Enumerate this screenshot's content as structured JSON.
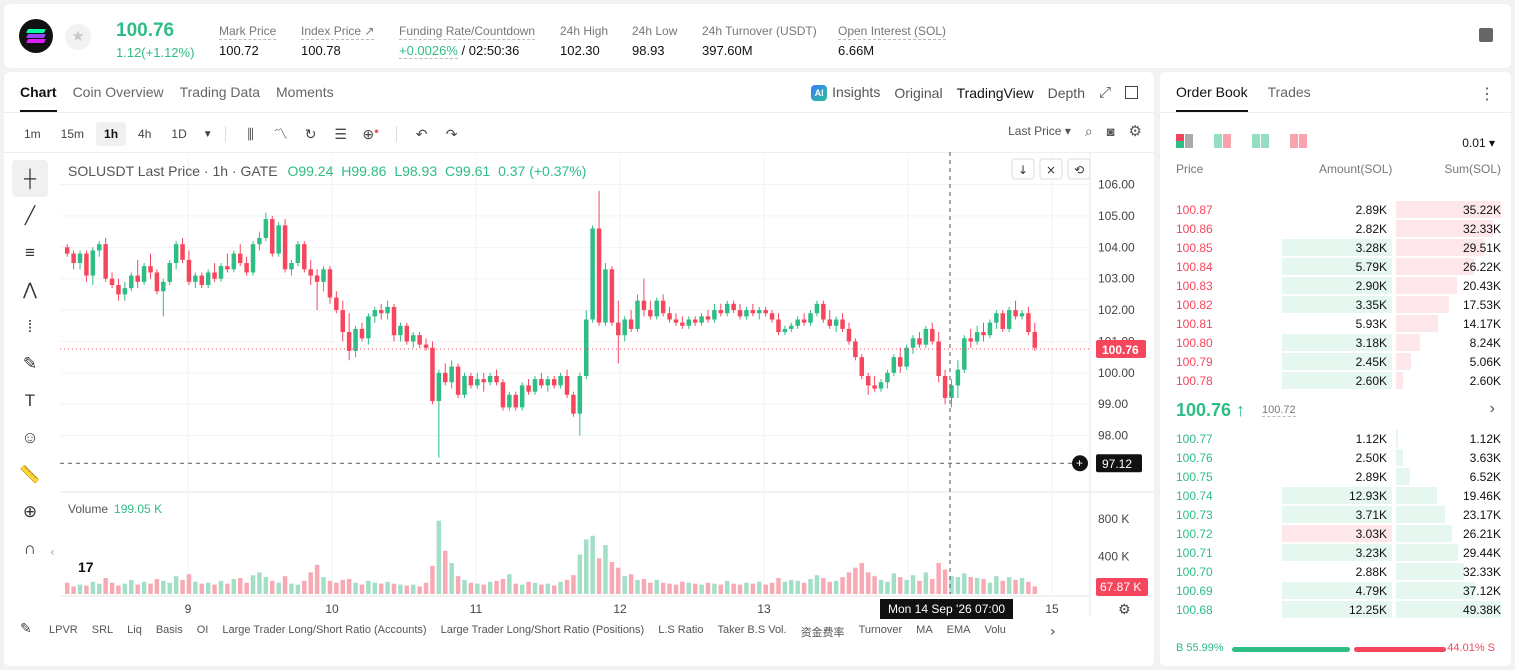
{
  "ticker": {
    "last_price": "100.76",
    "change": "1.12(+1.12%)",
    "stats": [
      {
        "label": "Mark Price",
        "value": "100.72"
      },
      {
        "label": "Index Price ↗",
        "value": "100.78"
      },
      {
        "label": "Funding Rate/Countdown",
        "value_rate": "+0.0026%",
        "value_time": "/ 02:50:36"
      },
      {
        "label": "24h High",
        "value": "102.30"
      },
      {
        "label": "24h Low",
        "value": "98.93"
      },
      {
        "label": "24h Turnover (USDT)",
        "value": "397.60M"
      },
      {
        "label": "Open Interest (SOL)",
        "value": "6.66M"
      }
    ]
  },
  "chart_tabs": {
    "left": [
      "Chart",
      "Coin Overview",
      "Trading Data",
      "Moments"
    ],
    "right": [
      "Insights",
      "Original",
      "TradingView",
      "Depth"
    ],
    "ai_badge": "AI"
  },
  "toolbar": {
    "timeframes": [
      "1m",
      "15m",
      "1h",
      "4h",
      "1D"
    ],
    "price_type": "Last Price ▾",
    "icons": [
      "candles-icon",
      "indicator-icon",
      "replay-icon",
      "template-icon",
      "add-indicator-icon",
      "undo-icon",
      "redo-icon"
    ]
  },
  "legend": {
    "symbol": "SOLUSDT Last Price · 1h · GATE",
    "o": "O99.24",
    "h": "H99.86",
    "l": "L98.93",
    "c": "C99.61",
    "chg": "0.37 (+0.37%)"
  },
  "volume_legend": {
    "label": "Volume",
    "value": "199.05 K"
  },
  "crosshair": {
    "date": "Mon 14 Sep '26   07:00",
    "price_label": "97.12"
  },
  "last_price_label": "100.76",
  "volume_last_label": "67.87 K",
  "indicators": [
    "LPVR",
    "SRL",
    "Liq",
    "Basis",
    "OI",
    "Large Trader Long/Short Ratio (Accounts)",
    "Large Trader Long/Short Ratio (Positions)",
    "L.S Ratio",
    "Taker B.S Vol.",
    "资金费率",
    "Turnover",
    "MA",
    "EMA",
    "Volu"
  ],
  "chart_data": {
    "type": "candlestick",
    "title": "SOLUSDT Last Price · 1h · GATE",
    "y_ticks": [
      "106.00",
      "105.00",
      "104.00",
      "103.00",
      "102.00",
      "101.00",
      "100.00",
      "99.00",
      "98.00"
    ],
    "ylim": [
      97.0,
      106.4
    ],
    "volume_ticks": [
      "800 K",
      "400 K"
    ],
    "volume_ylim": [
      0,
      1000
    ],
    "x_ticks": [
      "9",
      "10",
      "11",
      "12",
      "13",
      "15"
    ],
    "colors": {
      "up": "#2ebd85",
      "down": "#f6465d",
      "up_vol": "#a3dfc6",
      "down_vol": "#f7a9b4"
    },
    "candles": [
      [
        104.0,
        104.1,
        103.7,
        103.8
      ],
      [
        103.8,
        103.9,
        103.3,
        103.5
      ],
      [
        103.5,
        103.9,
        103.3,
        103.8
      ],
      [
        103.8,
        103.9,
        102.9,
        103.1
      ],
      [
        103.1,
        104.0,
        102.8,
        103.9
      ],
      [
        103.9,
        104.2,
        103.7,
        104.1
      ],
      [
        104.1,
        104.3,
        102.9,
        103.0
      ],
      [
        103.0,
        103.2,
        102.7,
        102.8
      ],
      [
        102.8,
        103.0,
        102.3,
        102.5
      ],
      [
        102.5,
        102.9,
        102.3,
        102.7
      ],
      [
        102.7,
        103.2,
        102.6,
        103.1
      ],
      [
        103.1,
        103.6,
        102.7,
        102.9
      ],
      [
        102.9,
        103.5,
        102.8,
        103.4
      ],
      [
        103.4,
        103.8,
        103.0,
        103.2
      ],
      [
        103.2,
        103.3,
        102.5,
        102.6
      ],
      [
        102.6,
        103.0,
        101.8,
        102.9
      ],
      [
        102.9,
        103.6,
        102.8,
        103.5
      ],
      [
        103.5,
        104.2,
        103.3,
        104.1
      ],
      [
        104.1,
        104.3,
        103.5,
        103.6
      ],
      [
        103.6,
        103.9,
        102.8,
        102.9
      ],
      [
        102.9,
        103.2,
        102.7,
        103.1
      ],
      [
        103.1,
        103.2,
        102.7,
        102.8
      ],
      [
        102.8,
        103.3,
        102.7,
        103.2
      ],
      [
        103.2,
        103.5,
        102.9,
        103.0
      ],
      [
        103.0,
        103.5,
        102.9,
        103.4
      ],
      [
        103.4,
        103.8,
        103.2,
        103.3
      ],
      [
        103.3,
        103.9,
        103.2,
        103.8
      ],
      [
        103.8,
        104.1,
        103.4,
        103.5
      ],
      [
        103.5,
        103.7,
        103.1,
        103.2
      ],
      [
        103.2,
        104.2,
        103.1,
        104.1
      ],
      [
        104.1,
        104.5,
        103.9,
        104.3
      ],
      [
        104.3,
        105.1,
        104.2,
        104.9
      ],
      [
        104.9,
        105.0,
        103.7,
        103.8
      ],
      [
        103.8,
        104.8,
        103.7,
        104.7
      ],
      [
        104.7,
        104.9,
        103.2,
        103.3
      ],
      [
        103.3,
        103.6,
        103.1,
        103.5
      ],
      [
        103.5,
        104.2,
        103.4,
        104.1
      ],
      [
        104.1,
        104.2,
        103.2,
        103.3
      ],
      [
        103.3,
        103.6,
        102.8,
        103.1
      ],
      [
        103.1,
        103.3,
        102.0,
        102.9
      ],
      [
        102.9,
        103.4,
        102.6,
        103.3
      ],
      [
        103.3,
        103.4,
        102.2,
        102.4
      ],
      [
        102.4,
        102.6,
        101.9,
        102.0
      ],
      [
        102.0,
        102.3,
        101.0,
        101.3
      ],
      [
        101.3,
        101.9,
        100.4,
        100.7
      ],
      [
        100.7,
        101.5,
        100.5,
        101.4
      ],
      [
        101.4,
        101.6,
        101.0,
        101.1
      ],
      [
        101.1,
        101.9,
        100.9,
        101.8
      ],
      [
        101.8,
        102.1,
        101.6,
        102.0
      ],
      [
        102.0,
        102.2,
        101.7,
        101.9
      ],
      [
        101.9,
        102.3,
        101.7,
        102.1
      ],
      [
        102.1,
        102.2,
        101.0,
        101.2
      ],
      [
        101.2,
        101.6,
        101.0,
        101.5
      ],
      [
        101.5,
        101.6,
        100.9,
        101.0
      ],
      [
        101.0,
        101.3,
        100.8,
        101.2
      ],
      [
        101.2,
        101.3,
        100.8,
        100.9
      ],
      [
        100.9,
        101.1,
        100.7,
        100.8
      ],
      [
        100.8,
        101.0,
        99.0,
        99.1
      ],
      [
        99.1,
        100.1,
        97.3,
        100.0
      ],
      [
        100.0,
        100.3,
        99.6,
        99.7
      ],
      [
        99.7,
        100.4,
        99.5,
        100.2
      ],
      [
        100.2,
        100.3,
        99.2,
        99.3
      ],
      [
        99.3,
        100.0,
        99.2,
        99.9
      ],
      [
        99.9,
        100.0,
        99.5,
        99.6
      ],
      [
        99.6,
        100.0,
        99.5,
        99.8
      ],
      [
        99.8,
        100.0,
        99.4,
        99.7
      ],
      [
        99.7,
        100.0,
        99.6,
        99.9
      ],
      [
        99.9,
        100.1,
        99.6,
        99.7
      ],
      [
        99.7,
        99.8,
        98.8,
        98.9
      ],
      [
        98.9,
        99.4,
        98.8,
        99.3
      ],
      [
        99.3,
        99.4,
        98.8,
        98.9
      ],
      [
        98.9,
        99.7,
        98.8,
        99.6
      ],
      [
        99.6,
        99.8,
        99.3,
        99.4
      ],
      [
        99.4,
        99.9,
        99.3,
        99.8
      ],
      [
        99.8,
        100.0,
        99.5,
        99.6
      ],
      [
        99.6,
        99.9,
        99.4,
        99.8
      ],
      [
        99.8,
        99.9,
        99.5,
        99.6
      ],
      [
        99.6,
        100.0,
        99.5,
        99.9
      ],
      [
        99.9,
        100.1,
        99.2,
        99.3
      ],
      [
        99.3,
        99.4,
        98.6,
        98.7
      ],
      [
        98.7,
        100.0,
        98.0,
        99.9
      ],
      [
        99.9,
        102.0,
        99.8,
        101.7
      ],
      [
        101.7,
        104.7,
        101.6,
        104.6
      ],
      [
        104.6,
        105.8,
        101.5,
        101.6
      ],
      [
        101.6,
        103.5,
        101.5,
        103.3
      ],
      [
        103.3,
        103.4,
        101.5,
        101.6
      ],
      [
        101.6,
        102.3,
        100.3,
        101.2
      ],
      [
        101.2,
        101.8,
        101.0,
        101.7
      ],
      [
        101.7,
        102.0,
        101.3,
        101.4
      ],
      [
        101.4,
        102.5,
        101.3,
        102.3
      ],
      [
        102.3,
        103.0,
        101.8,
        102.0
      ],
      [
        102.0,
        102.3,
        101.7,
        101.8
      ],
      [
        101.8,
        102.4,
        101.7,
        102.3
      ],
      [
        102.3,
        102.5,
        101.8,
        101.9
      ],
      [
        101.9,
        102.1,
        101.6,
        101.7
      ],
      [
        101.7,
        101.9,
        101.5,
        101.6
      ],
      [
        101.6,
        101.8,
        101.4,
        101.5
      ],
      [
        101.5,
        101.8,
        101.4,
        101.7
      ],
      [
        101.7,
        101.8,
        101.5,
        101.6
      ],
      [
        101.6,
        101.9,
        101.5,
        101.8
      ],
      [
        101.8,
        102.0,
        101.6,
        101.7
      ],
      [
        101.7,
        102.2,
        101.6,
        102.0
      ],
      [
        102.0,
        102.2,
        101.8,
        101.9
      ],
      [
        101.9,
        102.3,
        101.8,
        102.2
      ],
      [
        102.2,
        102.3,
        101.9,
        102.0
      ],
      [
        102.0,
        102.2,
        101.7,
        101.8
      ],
      [
        101.8,
        102.1,
        101.7,
        102.0
      ],
      [
        102.0,
        102.2,
        101.8,
        101.9
      ],
      [
        101.9,
        102.1,
        101.7,
        102.0
      ],
      [
        102.0,
        102.1,
        101.8,
        101.9
      ],
      [
        101.9,
        102.0,
        101.6,
        101.7
      ],
      [
        101.7,
        101.9,
        101.2,
        101.3
      ],
      [
        101.3,
        101.5,
        101.2,
        101.4
      ],
      [
        101.4,
        101.6,
        101.3,
        101.5
      ],
      [
        101.5,
        101.8,
        101.4,
        101.7
      ],
      [
        101.7,
        101.9,
        101.5,
        101.6
      ],
      [
        101.6,
        102.0,
        101.5,
        101.9
      ],
      [
        101.9,
        102.3,
        101.8,
        102.2
      ],
      [
        102.2,
        102.3,
        101.6,
        101.7
      ],
      [
        101.7,
        102.0,
        101.4,
        101.5
      ],
      [
        101.5,
        101.8,
        101.3,
        101.7
      ],
      [
        101.7,
        101.9,
        101.3,
        101.4
      ],
      [
        101.4,
        101.6,
        100.9,
        101.0
      ],
      [
        101.0,
        101.1,
        100.4,
        100.5
      ],
      [
        100.5,
        100.6,
        99.8,
        99.9
      ],
      [
        99.9,
        100.0,
        99.3,
        99.6
      ],
      [
        99.6,
        99.9,
        99.4,
        99.5
      ],
      [
        99.5,
        99.8,
        99.4,
        99.7
      ],
      [
        99.7,
        100.1,
        99.5,
        100.0
      ],
      [
        100.0,
        100.6,
        99.9,
        100.5
      ],
      [
        100.5,
        100.8,
        100.0,
        100.2
      ],
      [
        100.2,
        100.9,
        100.1,
        100.8
      ],
      [
        100.8,
        101.2,
        100.6,
        101.1
      ],
      [
        101.1,
        101.3,
        100.8,
        100.9
      ],
      [
        100.9,
        101.5,
        100.8,
        101.4
      ],
      [
        101.4,
        101.6,
        100.9,
        101.0
      ],
      [
        101.0,
        101.3,
        99.7,
        99.9
      ],
      [
        99.9,
        100.1,
        99.0,
        99.2
      ],
      [
        99.2,
        99.8,
        98.9,
        99.6
      ],
      [
        99.6,
        100.4,
        99.2,
        100.1
      ],
      [
        100.1,
        101.2,
        100.0,
        101.1
      ],
      [
        101.1,
        101.4,
        100.8,
        101.0
      ],
      [
        101.0,
        101.5,
        100.9,
        101.3
      ],
      [
        101.3,
        101.6,
        101.0,
        101.2
      ],
      [
        101.2,
        101.7,
        101.1,
        101.6
      ],
      [
        101.6,
        102.0,
        101.4,
        101.9
      ],
      [
        101.9,
        102.0,
        101.3,
        101.4
      ],
      [
        101.4,
        102.1,
        101.3,
        102.0
      ],
      [
        102.0,
        102.3,
        101.7,
        101.8
      ],
      [
        101.8,
        102.0,
        101.7,
        101.9
      ],
      [
        101.9,
        102.1,
        101.2,
        101.3
      ],
      [
        101.3,
        101.6,
        100.7,
        100.8
      ]
    ],
    "volumes": [
      120,
      80,
      100,
      90,
      130,
      110,
      170,
      120,
      90,
      110,
      150,
      100,
      130,
      110,
      160,
      140,
      120,
      190,
      150,
      210,
      130,
      110,
      120,
      100,
      140,
      110,
      160,
      170,
      120,
      200,
      230,
      180,
      140,
      120,
      190,
      110,
      100,
      140,
      230,
      310,
      180,
      140,
      120,
      150,
      160,
      120,
      100,
      140,
      120,
      110,
      130,
      110,
      100,
      90,
      100,
      80,
      120,
      300,
      780,
      460,
      330,
      190,
      150,
      120,
      110,
      100,
      130,
      140,
      160,
      210,
      110,
      100,
      130,
      120,
      100,
      110,
      90,
      130,
      150,
      200,
      420,
      580,
      620,
      380,
      520,
      340,
      280,
      190,
      210,
      150,
      160,
      120,
      150,
      120,
      110,
      100,
      130,
      120,
      110,
      100,
      120,
      110,
      100,
      140,
      110,
      100,
      120,
      110,
      130,
      100,
      120,
      170,
      130,
      150,
      140,
      120,
      160,
      200,
      170,
      130,
      140,
      180,
      230,
      280,
      330,
      230,
      190,
      150,
      130,
      220,
      180,
      150,
      200,
      140,
      230,
      160,
      330,
      260,
      190,
      180,
      220,
      180,
      170,
      160,
      120,
      190,
      140,
      180,
      150,
      170,
      130,
      80
    ]
  },
  "order_book": {
    "tabs": [
      "Order Book",
      "Trades"
    ],
    "precision": "0.01 ▾",
    "headers": [
      "Price",
      "Amount(SOL)",
      "Sum(SOL)"
    ],
    "asks": [
      {
        "price": "100.87",
        "amount": "2.89K",
        "sum": "35.22K",
        "depth": 1.0,
        "amt_ratio": 0.0
      },
      {
        "price": "100.86",
        "amount": "2.82K",
        "sum": "32.33K",
        "depth": 0.92,
        "amt_ratio": 0.0
      },
      {
        "price": "100.85",
        "amount": "3.28K",
        "sum": "29.51K",
        "depth": 0.84,
        "amt_ratio": 0.34
      },
      {
        "price": "100.84",
        "amount": "5.79K",
        "sum": "26.22K",
        "depth": 0.74,
        "amt_ratio": 0.34
      },
      {
        "price": "100.83",
        "amount": "2.90K",
        "sum": "20.43K",
        "depth": 0.58,
        "amt_ratio": 0.34
      },
      {
        "price": "100.82",
        "amount": "3.35K",
        "sum": "17.53K",
        "depth": 0.5,
        "amt_ratio": 0.34
      },
      {
        "price": "100.81",
        "amount": "5.93K",
        "sum": "14.17K",
        "depth": 0.4,
        "amt_ratio": 0.0
      },
      {
        "price": "100.80",
        "amount": "3.18K",
        "sum": "8.24K",
        "depth": 0.23,
        "amt_ratio": 0.34
      },
      {
        "price": "100.79",
        "amount": "2.45K",
        "sum": "5.06K",
        "depth": 0.14,
        "amt_ratio": 0.34
      },
      {
        "price": "100.78",
        "amount": "2.60K",
        "sum": "2.60K",
        "depth": 0.07,
        "amt_ratio": 0.34
      }
    ],
    "mid": {
      "price": "100.76 ↑",
      "mark": "100.72"
    },
    "bids": [
      {
        "price": "100.77",
        "amount": "1.12K",
        "sum": "1.12K",
        "depth": 0.02,
        "amt_ratio": 0.0,
        "amt_red": false
      },
      {
        "price": "100.76",
        "amount": "2.50K",
        "sum": "3.63K",
        "depth": 0.07,
        "amt_ratio": 0.0,
        "amt_red": false
      },
      {
        "price": "100.75",
        "amount": "2.89K",
        "sum": "6.52K",
        "depth": 0.13,
        "amt_ratio": 0.0,
        "amt_red": false
      },
      {
        "price": "100.74",
        "amount": "12.93K",
        "sum": "19.46K",
        "depth": 0.39,
        "amt_ratio": 0.34,
        "amt_red": false
      },
      {
        "price": "100.73",
        "amount": "3.71K",
        "sum": "23.17K",
        "depth": 0.47,
        "amt_ratio": 0.34,
        "amt_red": false
      },
      {
        "price": "100.72",
        "amount": "3.03K",
        "sum": "26.21K",
        "depth": 0.53,
        "amt_ratio": 0.34,
        "amt_red": true
      },
      {
        "price": "100.71",
        "amount": "3.23K",
        "sum": "29.44K",
        "depth": 0.59,
        "amt_ratio": 0.34,
        "amt_red": false
      },
      {
        "price": "100.70",
        "amount": "2.88K",
        "sum": "32.33K",
        "depth": 0.65,
        "amt_ratio": 0.0,
        "amt_red": false
      },
      {
        "price": "100.69",
        "amount": "4.79K",
        "sum": "37.12K",
        "depth": 0.75,
        "amt_ratio": 0.34,
        "amt_red": false
      },
      {
        "price": "100.68",
        "amount": "12.25K",
        "sum": "49.38K",
        "depth": 1.0,
        "amt_ratio": 0.34,
        "amt_red": false
      }
    ],
    "buy_ratio": "B 55.99%",
    "sell_ratio": "44.01% S",
    "buy_fraction": 0.5599
  }
}
